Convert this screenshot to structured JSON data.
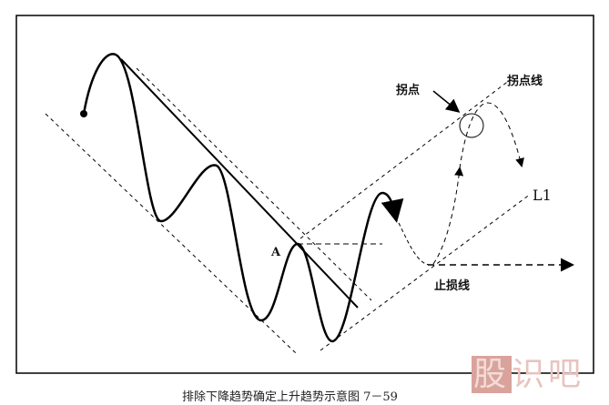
{
  "labels": {
    "turning_point": "拐点",
    "turning_point_line": "拐点线",
    "l1": "L1",
    "stop_loss_line": "止损线",
    "point_a": "A"
  },
  "caption": "排除下降趋势确定上升趋势示意图 7－59",
  "watermark": [
    "股",
    "识吧"
  ]
}
